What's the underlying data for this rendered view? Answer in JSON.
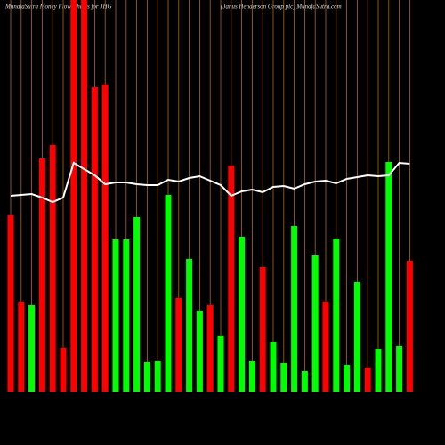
{
  "chart_data": {
    "type": "bar",
    "title": "MunafaSutra  Money Flow  Charts for JHG",
    "subtitle": "(Janus Henderson  Group plc) MunafaSutra.com",
    "categories": [
      null,
      null,
      null,
      null,
      null,
      null,
      null,
      null,
      null,
      null,
      null,
      null,
      null,
      null,
      null,
      null,
      null,
      null,
      null,
      null,
      null,
      null,
      null,
      null,
      null,
      null,
      null,
      null,
      null,
      null,
      null,
      null,
      null,
      null,
      null,
      null,
      null,
      null,
      null
    ],
    "values": [
      198,
      101,
      97,
      262,
      277,
      49,
      440,
      440,
      342,
      345,
      171,
      171,
      196,
      33,
      34,
      221,
      105,
      149,
      91,
      97,
      63,
      254,
      174,
      34,
      140,
      56,
      32,
      186,
      23,
      153,
      101,
      172,
      30,
      123,
      27,
      48,
      258,
      51,
      147
    ],
    "colors": [
      "#ff0000",
      "#ff0000",
      "#00ff00",
      "#ff0000",
      "#ff0000",
      "#ff0000",
      "#ff0000",
      "#ff0000",
      "#ff0000",
      "#ff0000",
      "#00ff00",
      "#00ff00",
      "#00ff00",
      "#00ff00",
      "#00ff00",
      "#00ff00",
      "#ff0000",
      "#00ff00",
      "#00ff00",
      "#ff0000",
      "#00ff00",
      "#ff0000",
      "#00ff00",
      "#00ff00",
      "#ff0000",
      "#00ff00",
      "#00ff00",
      "#00ff00",
      "#00ff00",
      "#00ff00",
      "#ff0000",
      "#00ff00",
      "#00ff00",
      "#00ff00",
      "#ff0000",
      "#00ff00",
      "#00ff00",
      "#00ff00",
      "#ff0000"
    ],
    "line": {
      "color": "#ffffff",
      "values": [
        220,
        221,
        222,
        218,
        213,
        218,
        257,
        250,
        243,
        233,
        235,
        235,
        233,
        232,
        232,
        238,
        236,
        240,
        242,
        237,
        232,
        220,
        225,
        227,
        224,
        230,
        231,
        228,
        233,
        236,
        237,
        234,
        239,
        241,
        243,
        242,
        243,
        257,
        256
      ]
    },
    "ylim": [
      0,
      440
    ],
    "grid_color": "#b8650a"
  }
}
